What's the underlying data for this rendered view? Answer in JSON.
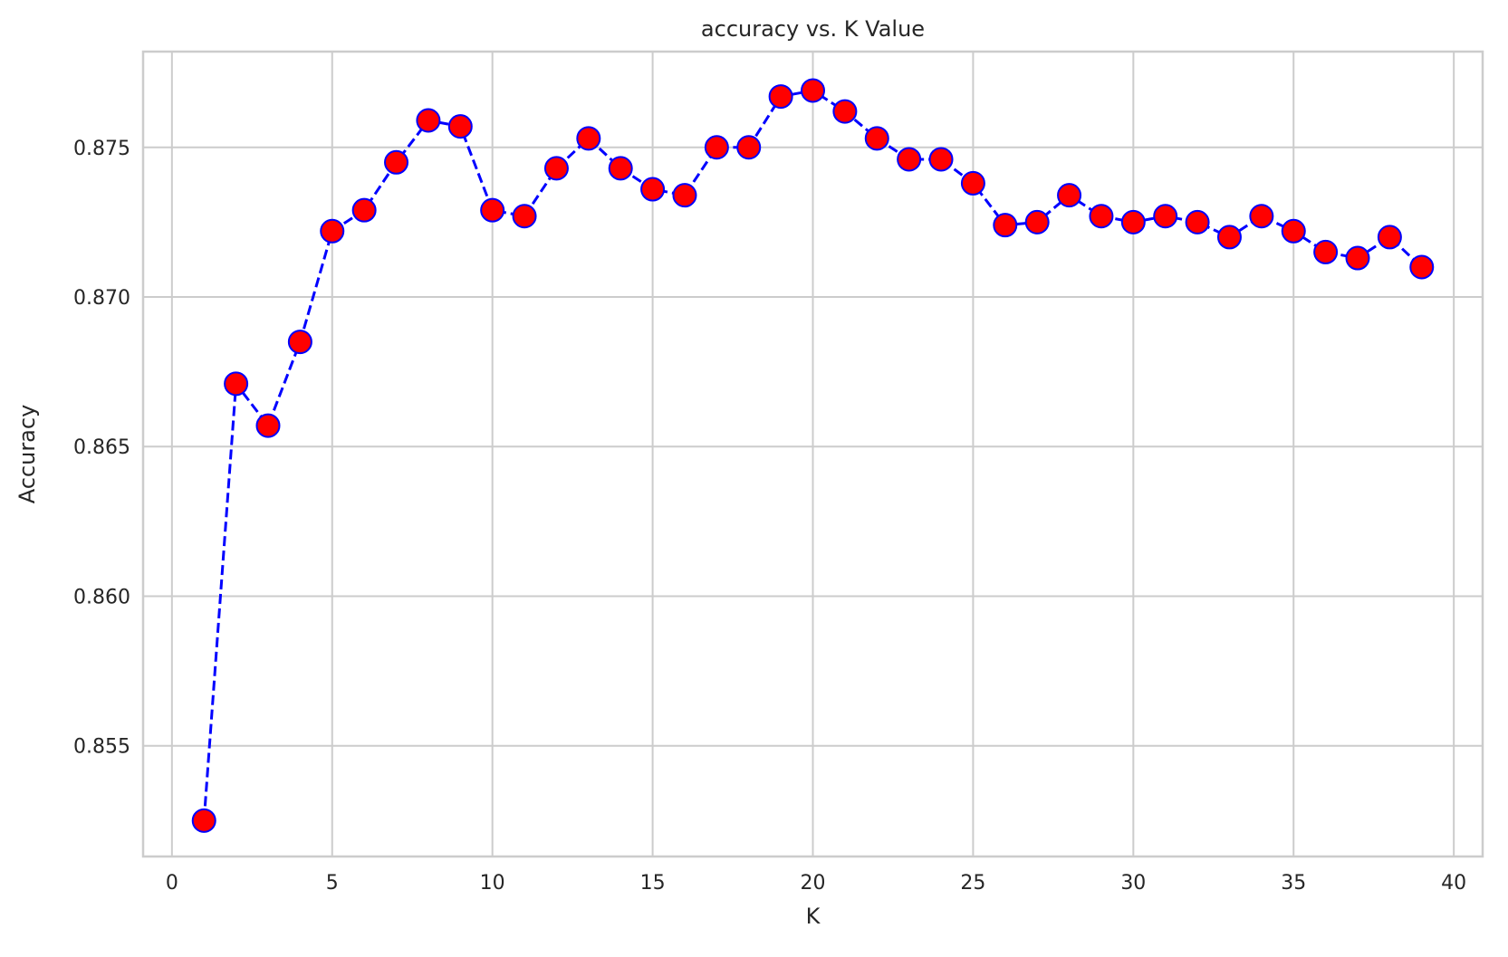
{
  "chart_data": {
    "type": "line",
    "title": "accuracy vs. K Value",
    "xlabel": "K",
    "ylabel": "Accuracy",
    "xlim": [
      -0.9,
      40.9
    ],
    "ylim": [
      0.8513,
      0.8782
    ],
    "xticks": [
      0,
      5,
      10,
      15,
      20,
      25,
      30,
      35,
      40
    ],
    "yticks": [
      0.855,
      0.86,
      0.865,
      0.87,
      0.875
    ],
    "ytick_labels": [
      "0.855",
      "0.860",
      "0.865",
      "0.870",
      "0.875"
    ],
    "grid": true,
    "line_color": "#0000ff",
    "line_style": "dashed",
    "marker_face_color": "#ff0000",
    "marker_edge_color": "#0000ff",
    "series": [
      {
        "x": [
          1,
          2,
          3,
          4,
          5,
          6,
          7,
          8,
          9,
          10,
          11,
          12,
          13,
          14,
          15,
          16,
          17,
          18,
          19,
          20,
          21,
          22,
          23,
          24,
          25,
          26,
          27,
          28,
          29,
          30,
          31,
          32,
          33,
          34,
          35,
          36,
          37,
          38,
          39
        ],
        "values": [
          0.8525,
          0.8671,
          0.8657,
          0.8685,
          0.8722,
          0.8729,
          0.8745,
          0.8759,
          0.8757,
          0.8729,
          0.8727,
          0.8743,
          0.8753,
          0.8743,
          0.8736,
          0.8734,
          0.875,
          0.875,
          0.8767,
          0.8769,
          0.8762,
          0.8753,
          0.8746,
          0.8746,
          0.8738,
          0.8724,
          0.8725,
          0.8734,
          0.8727,
          0.8725,
          0.8727,
          0.8725,
          0.872,
          0.8727,
          0.8722,
          0.8715,
          0.8713,
          0.872,
          0.871
        ]
      }
    ]
  }
}
